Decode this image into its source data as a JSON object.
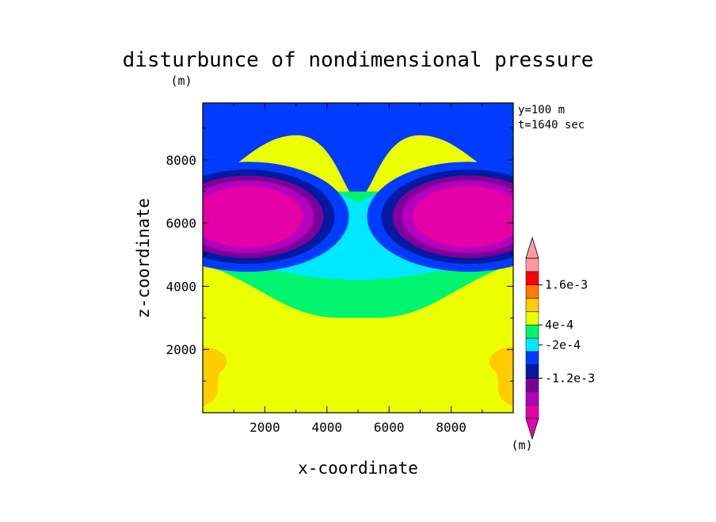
{
  "chart_data": {
    "type": "heatmap",
    "title": "disturbunce of nondimensional pressure",
    "xlabel": "x-coordinate",
    "ylabel": "z-coordinate",
    "y_unit": "(m)",
    "colorbar_unit": "(m)",
    "annotations": [
      "y=100 m",
      "t=1640 sec"
    ],
    "xlim": [
      0,
      10000
    ],
    "ylim": [
      0,
      9800
    ],
    "x_ticks": [
      2000,
      4000,
      6000,
      8000
    ],
    "y_ticks": [
      2000,
      4000,
      6000,
      8000
    ],
    "x_tick_labels": [
      "2000",
      "4000",
      "6000",
      "8000"
    ],
    "y_tick_labels": [
      "2000",
      "4000",
      "6000",
      "8000"
    ],
    "colorbar": {
      "colors": [
        "#e600a8",
        "#b400bd",
        "#7d009a",
        "#001aa0",
        "#003cff",
        "#00e8ff",
        "#00f46e",
        "#ecff00",
        "#ffcc00",
        "#ff7a00",
        "#ff0000",
        "#ff9aa0"
      ],
      "labels": [
        {
          "text": "1.6e-3",
          "boundary": 10
        },
        {
          "text": "4e-4",
          "boundary": 7
        },
        {
          "text": "-2e-4",
          "boundary": 5.5
        },
        {
          "text": "-1.2e-3",
          "boundary": 3
        }
      ]
    },
    "regions": {
      "background": "#ecff00",
      "top_layers": [
        "#ff9aa0",
        "#ff0000",
        "#ff7a00",
        "#ffcc00",
        "#ecff00",
        "#00f46e",
        "#00e8ff",
        "#003cff"
      ],
      "low_pressure_centers": [
        {
          "x": 1900,
          "z": 6300
        },
        {
          "x": 8100,
          "z": 6300
        }
      ],
      "vortex_colors": [
        "#003cff",
        "#001aa0",
        "#7d009a",
        "#b400bd",
        "#e600a8"
      ],
      "green_lower_boundary_z": 3000,
      "corner_color": "#ffcc00"
    }
  }
}
